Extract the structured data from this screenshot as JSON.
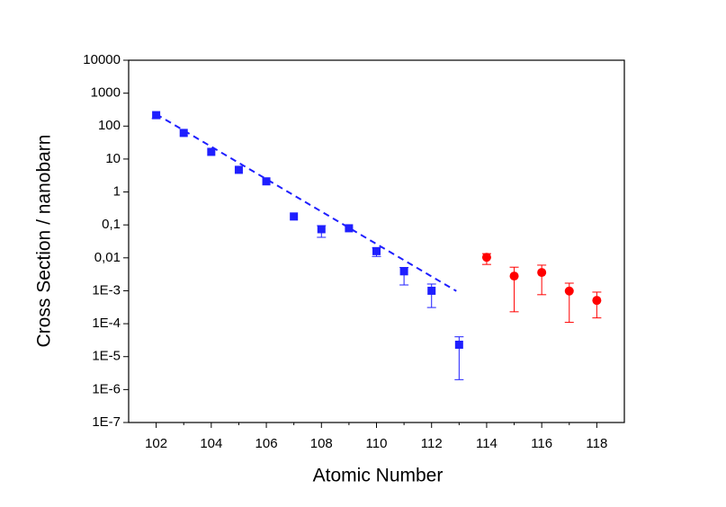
{
  "chart_data": {
    "type": "scatter",
    "x_label": "Atomic Number",
    "y_label": "Cross Section / nanobarn",
    "log_y": true,
    "xlim": [
      101,
      119
    ],
    "ylim": [
      1e-07,
      10000
    ],
    "xticks": [
      102,
      104,
      106,
      108,
      110,
      112,
      114,
      116,
      118
    ],
    "xminorticks": [
      103,
      105,
      107,
      109,
      111,
      113,
      115,
      117
    ],
    "yticks": [
      10000,
      1000,
      100,
      10,
      1,
      {
        "value": 0.1,
        "label": "0,1"
      },
      {
        "value": 0.01,
        "label": "0,01"
      },
      {
        "value": 0.001,
        "label": "1E-3"
      },
      {
        "value": 0.0001,
        "label": "1E-4"
      },
      {
        "value": 1e-05,
        "label": "1E-5"
      },
      {
        "value": 1e-06,
        "label": "1E-6"
      },
      {
        "value": 1e-07,
        "label": "1E-7"
      }
    ],
    "series": [
      {
        "color": "#1f1fff",
        "marker": "square",
        "x": [
          102,
          103,
          104,
          105,
          106,
          107,
          108,
          109,
          110,
          111,
          112,
          113
        ],
        "values": [
          215,
          62,
          16.5,
          4.7,
          2.1,
          0.18,
          0.074,
          0.079,
          0.016,
          0.0039,
          0.001,
          2.3e-05
        ],
        "lower": [
          170,
          null,
          null,
          null,
          null,
          null,
          0.042,
          null,
          0.011,
          0.0015,
          0.00031,
          2e-06
        ],
        "upper": [
          null,
          null,
          null,
          null,
          null,
          null,
          0.095,
          null,
          0.02,
          0.0051,
          0.0016,
          4e-05
        ]
      },
      {
        "color": "#ff0000",
        "marker": "circle",
        "x": [
          114,
          115,
          116,
          117,
          118
        ],
        "values": [
          0.0104,
          0.0028,
          0.0036,
          0.00098,
          0.00051
        ],
        "lower": [
          0.0063,
          0.00023,
          0.00076,
          0.00011,
          0.00015
        ],
        "upper": [
          0.0134,
          0.0052,
          0.006,
          0.0017,
          0.00091
        ]
      }
    ],
    "fit": {
      "color": "#1f1fff",
      "dashed": true,
      "x": [
        102,
        112.9
      ],
      "values": [
        230,
        0.00098
      ]
    }
  }
}
